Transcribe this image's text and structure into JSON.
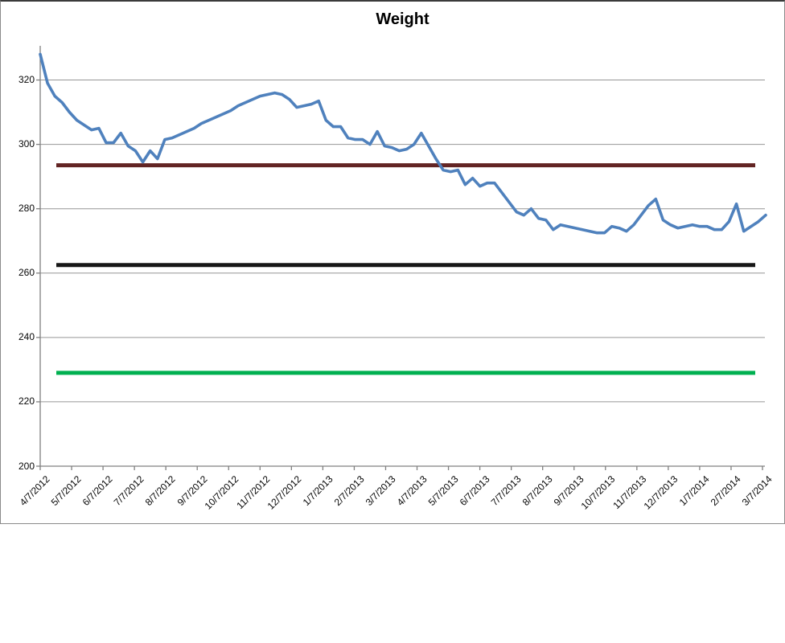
{
  "title": "Weight",
  "chart_data": {
    "type": "line",
    "title": "Weight",
    "xlabel": "",
    "ylabel": "",
    "ylim": [
      200,
      330
    ],
    "y_ticks": [
      200,
      220,
      240,
      260,
      280,
      300,
      320
    ],
    "grid": "horizontal-gray",
    "legend_position": "none",
    "x_tick_labels": [
      "4/7/2012",
      "5/7/2012",
      "6/7/2012",
      "7/7/2012",
      "8/7/2012",
      "9/7/2012",
      "10/7/2012",
      "11/7/2012",
      "12/7/2012",
      "1/7/2013",
      "2/7/2013",
      "3/7/2013",
      "4/7/2013",
      "5/7/2013",
      "6/7/2013",
      "7/7/2013",
      "8/7/2013",
      "9/7/2013",
      "10/7/2013",
      "11/7/2013",
      "12/7/2013",
      "1/7/2014",
      "2/7/2014",
      "3/7/2014"
    ],
    "series": [
      {
        "name": "Weight",
        "color": "#4F81BD",
        "frequency": "weekly",
        "values": [
          328,
          319,
          315,
          313,
          310,
          307.5,
          306,
          304.5,
          305,
          300.5,
          300.5,
          303.5,
          299.5,
          298,
          294.5,
          298,
          295.5,
          301.5,
          302,
          303,
          304,
          305,
          306.5,
          307.5,
          308.5,
          309.5,
          310.5,
          312,
          313,
          314,
          315,
          315.5,
          316,
          315.5,
          314,
          311.5,
          312,
          312.5,
          313.5,
          307.5,
          305.5,
          305.5,
          302,
          301.5,
          301.5,
          300,
          304,
          299.5,
          299,
          298,
          298.5,
          300,
          303.5,
          299.5,
          295.5,
          292,
          291.5,
          292,
          287.5,
          289.5,
          287,
          288,
          288,
          285,
          282,
          279,
          278,
          280,
          277,
          276.5,
          273.5,
          275,
          274.5,
          274,
          273.5,
          273,
          272.5,
          272.5,
          274.5,
          274,
          273,
          275,
          278,
          281,
          283,
          276.5,
          275,
          274,
          274.5,
          275,
          274.5,
          274.5,
          273.5,
          273.5,
          276,
          281.5,
          273,
          274.5,
          276,
          278
        ]
      }
    ],
    "reference_lines": [
      {
        "value": 293.5,
        "color": "#622423"
      },
      {
        "value": 262.5,
        "color": "#171717"
      },
      {
        "value": 229.0,
        "color": "#00B050"
      }
    ],
    "style": {
      "gridline_color": "#969696",
      "axis_color": "#808080",
      "tick_label_color": "#060606",
      "background": "#FFFFFF"
    }
  }
}
